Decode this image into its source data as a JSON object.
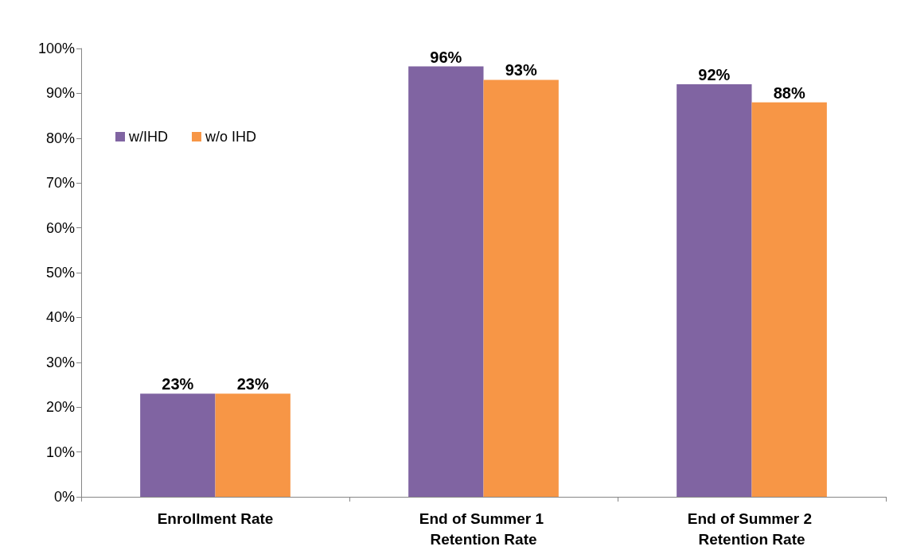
{
  "chart_data": {
    "type": "bar",
    "categories": [
      "Enrollment Rate",
      "End of Summer 1 Retention Rate",
      "End of Summer 2 Retention Rate"
    ],
    "series": [
      {
        "name": "w/IHD",
        "color": "#8064a2",
        "values": [
          23,
          96,
          92
        ],
        "value_labels": [
          "23%",
          "96%",
          "92%"
        ]
      },
      {
        "name": "w/o IHD",
        "color": "#f79646",
        "values": [
          23,
          93,
          88
        ],
        "value_labels": [
          "23%",
          "93%",
          "88%"
        ]
      }
    ],
    "ylim": [
      0,
      100
    ],
    "yticks": [
      {
        "value": 0,
        "label": "0%"
      },
      {
        "value": 10,
        "label": "10%"
      },
      {
        "value": 20,
        "label": "20%"
      },
      {
        "value": 30,
        "label": "30%"
      },
      {
        "value": 40,
        "label": "40%"
      },
      {
        "value": 50,
        "label": "50%"
      },
      {
        "value": 60,
        "label": "60%"
      },
      {
        "value": 70,
        "label": "70%"
      },
      {
        "value": 80,
        "label": "80%"
      },
      {
        "value": 90,
        "label": "90%"
      },
      {
        "value": 100,
        "label": "100%"
      }
    ],
    "grid": false,
    "legend": "top left"
  }
}
